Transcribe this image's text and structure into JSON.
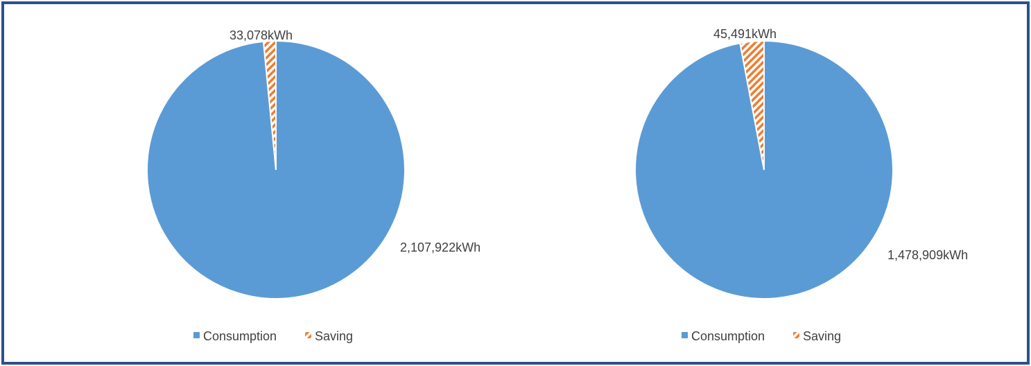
{
  "colors": {
    "consumption": "#5b9bd5",
    "saving": "#ed7d31",
    "frame": "#2e4f8f"
  },
  "legend": {
    "consumption_label": "Consumption",
    "saving_label": "Saving"
  },
  "chart_data": [
    {
      "type": "pie",
      "title": "",
      "legend_position": "bottom",
      "slices": [
        {
          "name": "Consumption",
          "value": 2107922,
          "label": "2,107,922kWh",
          "color": "#5b9bd5"
        },
        {
          "name": "Saving",
          "value": 33078,
          "label": "33,078kWh",
          "color": "#ed7d31",
          "pattern": "diagonal-hatch"
        }
      ]
    },
    {
      "type": "pie",
      "title": "",
      "legend_position": "bottom",
      "slices": [
        {
          "name": "Consumption",
          "value": 1478909,
          "label": "1,478,909kWh",
          "color": "#5b9bd5"
        },
        {
          "name": "Saving",
          "value": 45491,
          "label": "45,491kWh",
          "color": "#ed7d31",
          "pattern": "diagonal-hatch"
        }
      ]
    }
  ]
}
